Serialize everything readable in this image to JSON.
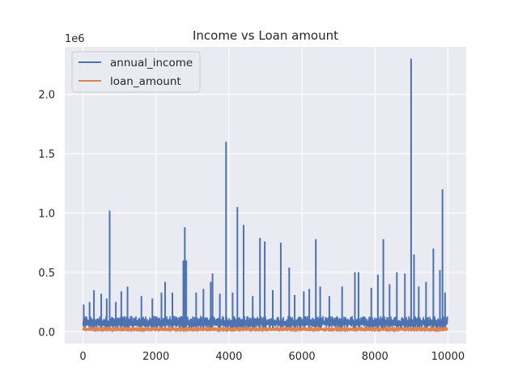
{
  "chart_data": {
    "type": "line",
    "title": "Income vs Loan amount",
    "xlabel": "",
    "ylabel": "",
    "y_offset_text": "1e6",
    "xlim": [
      -500,
      10500
    ],
    "ylim": [
      -100000,
      2400000
    ],
    "x_ticks": [
      0,
      2000,
      4000,
      6000,
      8000,
      10000
    ],
    "x_tick_labels": [
      "0",
      "2000",
      "4000",
      "6000",
      "8000",
      "10000"
    ],
    "y_ticks": [
      0,
      500000,
      1000000,
      1500000,
      2000000
    ],
    "y_tick_labels": [
      "0.0",
      "0.5",
      "1.0",
      "1.5",
      "2.0"
    ],
    "grid": true,
    "legend_position": "upper-left",
    "series": [
      {
        "name": "annual_income",
        "color": "#4c72b0",
        "baseline": {
          "x_range": [
            0,
            10000
          ],
          "low": 30000,
          "high": 130000
        },
        "peaks": [
          {
            "x": 20,
            "y": 230000
          },
          {
            "x": 180,
            "y": 250000
          },
          {
            "x": 300,
            "y": 350000
          },
          {
            "x": 500,
            "y": 320000
          },
          {
            "x": 650,
            "y": 280000
          },
          {
            "x": 730,
            "y": 1020000
          },
          {
            "x": 900,
            "y": 250000
          },
          {
            "x": 1050,
            "y": 340000
          },
          {
            "x": 1220,
            "y": 380000
          },
          {
            "x": 1600,
            "y": 300000
          },
          {
            "x": 1900,
            "y": 280000
          },
          {
            "x": 2150,
            "y": 330000
          },
          {
            "x": 2250,
            "y": 420000
          },
          {
            "x": 2450,
            "y": 330000
          },
          {
            "x": 2750,
            "y": 600000
          },
          {
            "x": 2790,
            "y": 880000
          },
          {
            "x": 2830,
            "y": 600000
          },
          {
            "x": 3100,
            "y": 330000
          },
          {
            "x": 3300,
            "y": 360000
          },
          {
            "x": 3500,
            "y": 420000
          },
          {
            "x": 3550,
            "y": 490000
          },
          {
            "x": 3750,
            "y": 320000
          },
          {
            "x": 3920,
            "y": 1600000
          },
          {
            "x": 4100,
            "y": 330000
          },
          {
            "x": 4230,
            "y": 1050000
          },
          {
            "x": 4400,
            "y": 900000
          },
          {
            "x": 4650,
            "y": 300000
          },
          {
            "x": 4850,
            "y": 790000
          },
          {
            "x": 4980,
            "y": 760000
          },
          {
            "x": 5200,
            "y": 350000
          },
          {
            "x": 5420,
            "y": 750000
          },
          {
            "x": 5650,
            "y": 540000
          },
          {
            "x": 5800,
            "y": 310000
          },
          {
            "x": 6050,
            "y": 340000
          },
          {
            "x": 6200,
            "y": 360000
          },
          {
            "x": 6380,
            "y": 780000
          },
          {
            "x": 6500,
            "y": 380000
          },
          {
            "x": 6750,
            "y": 300000
          },
          {
            "x": 7100,
            "y": 380000
          },
          {
            "x": 7450,
            "y": 500000
          },
          {
            "x": 7550,
            "y": 500000
          },
          {
            "x": 7900,
            "y": 370000
          },
          {
            "x": 8080,
            "y": 480000
          },
          {
            "x": 8230,
            "y": 780000
          },
          {
            "x": 8400,
            "y": 400000
          },
          {
            "x": 8600,
            "y": 500000
          },
          {
            "x": 8820,
            "y": 490000
          },
          {
            "x": 8990,
            "y": 2300000
          },
          {
            "x": 9070,
            "y": 650000
          },
          {
            "x": 9200,
            "y": 380000
          },
          {
            "x": 9400,
            "y": 420000
          },
          {
            "x": 9600,
            "y": 700000
          },
          {
            "x": 9780,
            "y": 520000
          },
          {
            "x": 9850,
            "y": 1200000
          },
          {
            "x": 9920,
            "y": 330000
          }
        ]
      },
      {
        "name": "loan_amount",
        "color": "#dd8452",
        "baseline": {
          "x_range": [
            0,
            10000
          ],
          "low": 2000,
          "high": 40000
        },
        "peaks": []
      }
    ]
  }
}
